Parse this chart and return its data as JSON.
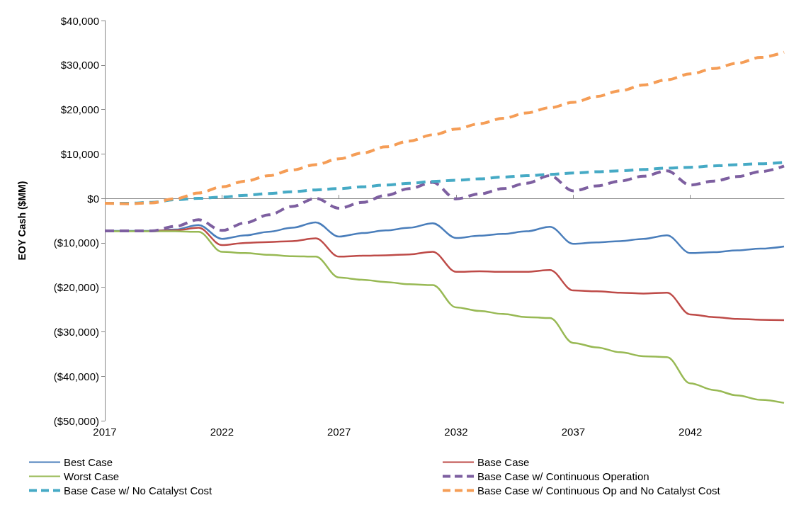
{
  "chart_data": {
    "type": "line",
    "ylabel": "EOY Cash ($MM)",
    "x": [
      2017,
      2018,
      2019,
      2020,
      2021,
      2022,
      2023,
      2024,
      2025,
      2026,
      2027,
      2028,
      2029,
      2030,
      2031,
      2032,
      2033,
      2034,
      2035,
      2036,
      2037,
      2038,
      2039,
      2040,
      2041,
      2042,
      2043,
      2044,
      2045,
      2046
    ],
    "xlim": [
      2017,
      2046
    ],
    "xticks": [
      2017,
      2022,
      2027,
      2032,
      2037,
      2042
    ],
    "ylim": [
      -50000,
      40000
    ],
    "yticks": [
      {
        "value": -50000,
        "label": "($50,000)"
      },
      {
        "value": -40000,
        "label": "($40,000)"
      },
      {
        "value": -30000,
        "label": "($30,000)"
      },
      {
        "value": -20000,
        "label": "($20,000)"
      },
      {
        "value": -10000,
        "label": "($10,000)"
      },
      {
        "value": 0,
        "label": "$0"
      },
      {
        "value": 10000,
        "label": "$10,000"
      },
      {
        "value": 20000,
        "label": "$20,000"
      },
      {
        "value": 30000,
        "label": "$30,000"
      },
      {
        "value": 40000,
        "label": "$40,000"
      }
    ],
    "legend": "bottom",
    "marker": "none",
    "series": [
      {
        "name": "Best Case",
        "color": "#4a7ebb",
        "line_style": "solid",
        "values": [
          -7300,
          -7300,
          -7300,
          -7000,
          -6000,
          -9100,
          -8300,
          -7500,
          -6600,
          -5400,
          -8600,
          -7800,
          -7200,
          -6600,
          -5600,
          -8900,
          -8400,
          -8000,
          -7400,
          -6400,
          -10200,
          -9900,
          -9600,
          -9100,
          -8300,
          -12300,
          -12100,
          -11700,
          -11300,
          -10800
        ]
      },
      {
        "name": "Base Case",
        "color": "#be4b48",
        "line_style": "solid",
        "values": [
          null,
          null,
          -7300,
          -7200,
          -6600,
          -10500,
          -10000,
          -9800,
          -9600,
          -9000,
          -13100,
          -12900,
          -12800,
          -12600,
          -12000,
          -16500,
          -16400,
          -16500,
          -16500,
          -16100,
          -20700,
          -20900,
          -21200,
          -21400,
          -21200,
          -26100,
          -26700,
          -27100,
          -27300,
          -27400
        ]
      },
      {
        "name": "Worst Case",
        "color": "#98b954",
        "line_style": "solid",
        "values": [
          -7400,
          -7400,
          -7400,
          -7400,
          -7500,
          -12000,
          -12300,
          -12700,
          -13000,
          -13100,
          -17800,
          -18300,
          -18800,
          -19300,
          -19500,
          -24500,
          -25300,
          -26000,
          -26700,
          -26900,
          -32500,
          -33500,
          -34600,
          -35500,
          -35700,
          -41600,
          -43100,
          -44300,
          -45300,
          -46000
        ]
      },
      {
        "name": "Base Case w/ Continuous Operation",
        "color": "#7d5fa0",
        "line_style": "dashed",
        "values": [
          -7300,
          -7300,
          -7300,
          -6300,
          -4800,
          -7200,
          -5500,
          -3700,
          -1800,
          0,
          -2200,
          -900,
          700,
          2200,
          3600,
          -100,
          1000,
          2200,
          3400,
          5100,
          1700,
          2800,
          3900,
          5000,
          6200,
          3000,
          3900,
          4900,
          6000,
          7300
        ]
      },
      {
        "name": "Base Case w/ No Catalyst Cost",
        "color": "#46aac5",
        "line_style": "dashed",
        "values": [
          -1100,
          -1100,
          -900,
          -300,
          0,
          300,
          700,
          1100,
          1500,
          1900,
          2200,
          2600,
          3000,
          3400,
          3800,
          4100,
          4400,
          4800,
          5100,
          5400,
          5700,
          6000,
          6200,
          6500,
          6800,
          7000,
          7300,
          7600,
          7800,
          8100
        ]
      },
      {
        "name": "Base Case w/ Continuous Op and No Catalyst Cost",
        "color": "#f59d56",
        "line_style": "dashed",
        "values": [
          -1100,
          -1200,
          -1000,
          -100,
          1200,
          2600,
          3900,
          5100,
          6400,
          7600,
          8900,
          10200,
          11600,
          12900,
          14300,
          15600,
          16800,
          18000,
          19200,
          20400,
          21600,
          22900,
          24200,
          25500,
          26700,
          28000,
          29200,
          30400,
          31700,
          32900
        ]
      }
    ]
  }
}
